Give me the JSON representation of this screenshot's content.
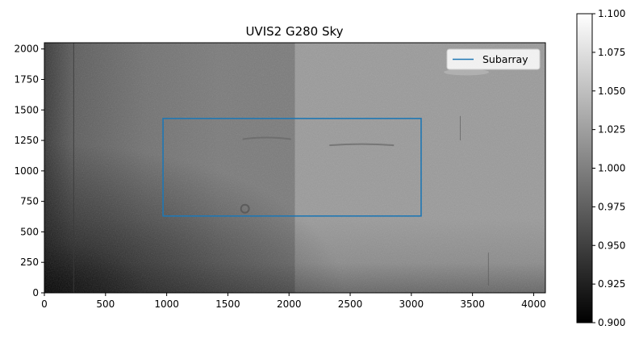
{
  "chart_data": {
    "type": "heatmap",
    "title": "UVIS2 G280 Sky",
    "xlabel": "",
    "ylabel": "",
    "xlim": [
      0,
      4096
    ],
    "ylim": [
      0,
      2051
    ],
    "x_ticks": [
      0,
      500,
      1000,
      1500,
      2000,
      2500,
      3000,
      3500,
      4000
    ],
    "y_ticks": [
      0,
      250,
      500,
      750,
      1000,
      1250,
      1500,
      1750,
      2000
    ],
    "colormap": "gray",
    "colorbar": {
      "range": [
        0.9,
        1.1
      ],
      "ticks": [
        "0.900",
        "0.925",
        "0.950",
        "0.975",
        "1.000",
        "1.025",
        "1.050",
        "1.075",
        "1.100"
      ]
    },
    "subarray": {
      "x": [
        970,
        3080
      ],
      "y": [
        630,
        1430
      ],
      "color": "#1f77b4"
    },
    "legend": {
      "entries": [
        "Subarray"
      ],
      "placement": "upper right"
    },
    "grid": false
  }
}
